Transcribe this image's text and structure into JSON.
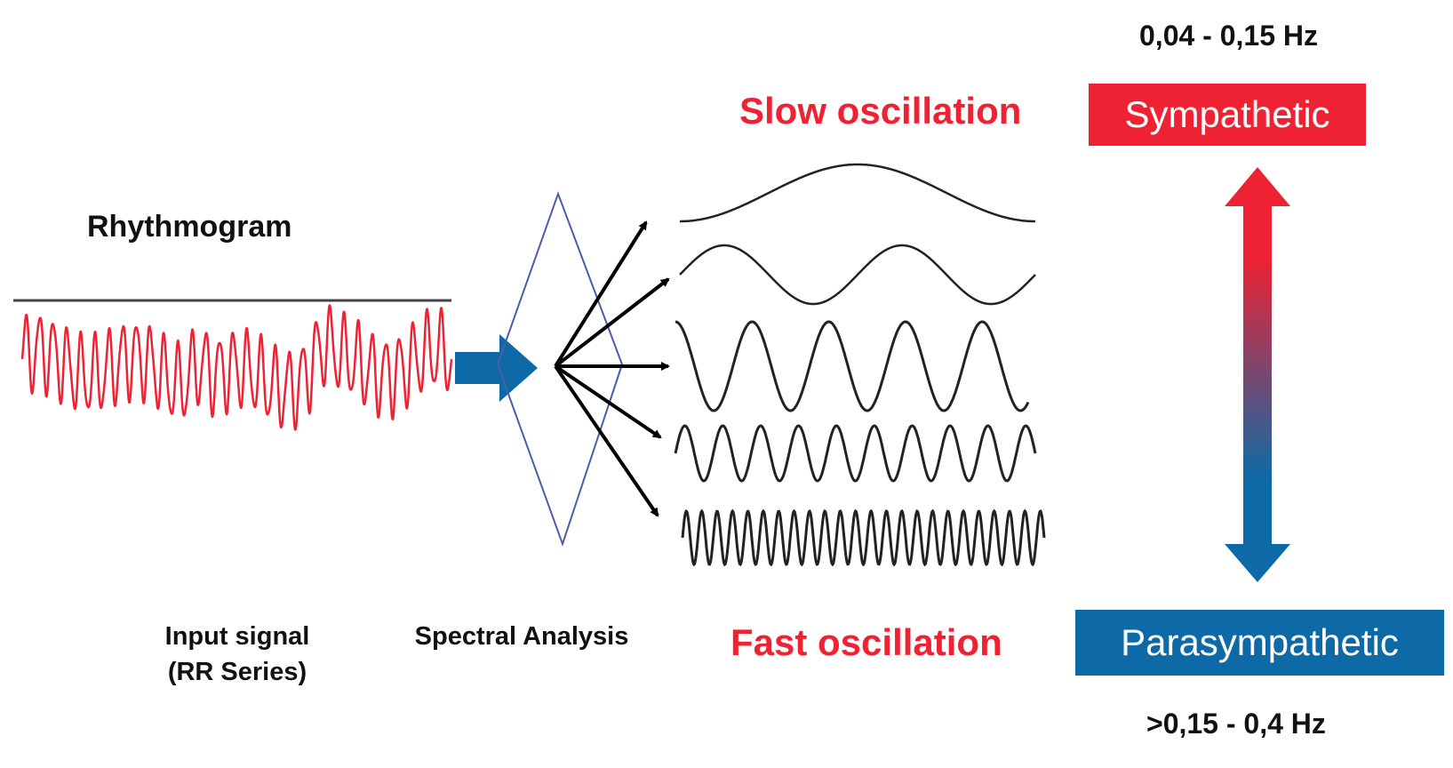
{
  "colors": {
    "sympathetic": "#ee2233",
    "parasympathetic": "#0e6aa6",
    "slow_text": "#ee2233",
    "fast_text": "#ee2233",
    "rr_signal": "#ee2233",
    "input_arrow": "#0e6aa6",
    "diamond": "#4a5ea8",
    "waves": "#222222"
  },
  "diagram": {
    "rhythmogram_title": "Rhythmogram",
    "input_caption_line1": "Input signal",
    "input_caption_line2": "(RR Series)",
    "spectral_caption": "Spectral Analysis",
    "slow_label": "Slow oscillation",
    "fast_label": "Fast oscillation",
    "sympathetic_label": "Sympathetic",
    "parasympathetic_label": "Parasympathetic",
    "lf_range": "0,04 - 0,15 Hz",
    "hf_range": ">0,15 - 0,4 Hz"
  }
}
